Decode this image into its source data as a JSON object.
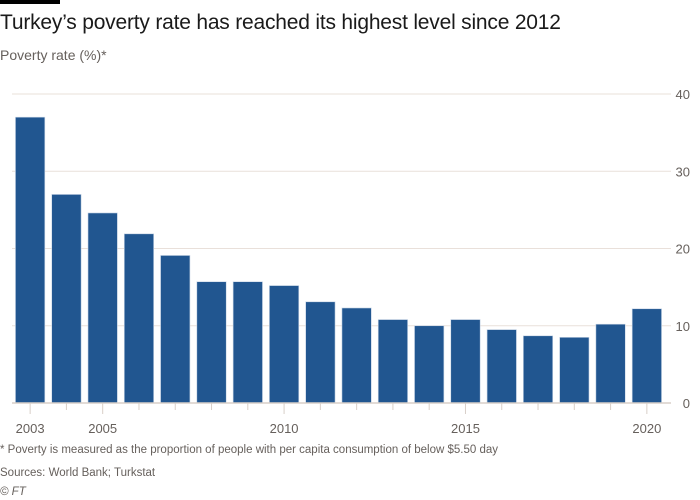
{
  "header": {
    "title": "Turkey’s poverty rate has reached its highest level since 2012",
    "subtitle": "Poverty rate (%)*"
  },
  "footer": {
    "note": "* Poverty is measured as the proportion of people with per capita consumption of below $5.50 day",
    "sources": "Sources: World Bank; Turkstat",
    "credit": "© FT"
  },
  "colors": {
    "bar": "#215690",
    "grid": "#e9e0da",
    "axis": "#d8cfc8",
    "text": "#66605c",
    "accent": "#000000"
  },
  "chart_data": {
    "type": "bar",
    "title": "Turkey’s poverty rate has reached its highest level since 2012",
    "ylabel": "Poverty rate (%)*",
    "xlabel": "",
    "categories": [
      2003,
      2004,
      2005,
      2006,
      2007,
      2008,
      2009,
      2010,
      2011,
      2012,
      2013,
      2014,
      2015,
      2016,
      2017,
      2018,
      2019,
      2020
    ],
    "values": [
      37.0,
      27.0,
      24.6,
      21.9,
      19.1,
      15.7,
      15.7,
      15.2,
      13.1,
      12.3,
      10.8,
      10.0,
      10.8,
      9.5,
      8.7,
      8.5,
      10.2,
      12.2
    ],
    "ylim": [
      0,
      40
    ],
    "yticks": [
      "0",
      "10",
      "20",
      "30",
      "40"
    ],
    "xtick_labels": [
      "2003",
      "2005",
      "2010",
      "2015",
      "2020"
    ],
    "y_axis_side": "right",
    "grid": true
  }
}
